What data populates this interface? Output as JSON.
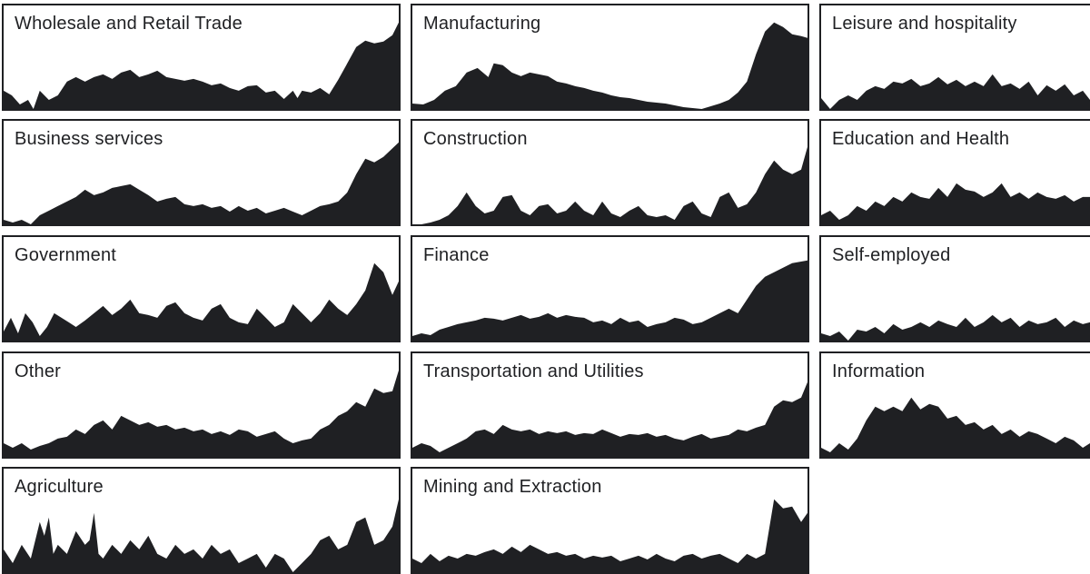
{
  "colors": {
    "fill": "#1f2023",
    "frame": "#1f2023",
    "background": "#ffffff"
  },
  "chart_data": [
    {
      "type": "area",
      "title": "Wholesale and Retail Trade",
      "x_index": [
        0,
        9,
        18,
        27,
        33,
        40,
        50,
        60,
        70,
        80,
        90,
        100,
        110,
        120,
        130,
        140,
        150,
        160,
        170,
        180,
        190,
        200,
        210,
        220,
        230,
        240,
        250,
        260,
        270,
        280,
        290,
        300,
        310,
        320,
        325,
        330,
        340,
        350,
        360,
        370,
        380,
        390,
        400,
        410,
        420,
        430,
        437
      ],
      "values": [
        0.2,
        0.15,
        0.05,
        0.1,
        0.0,
        0.2,
        0.1,
        0.15,
        0.3,
        0.35,
        0.3,
        0.35,
        0.38,
        0.33,
        0.4,
        0.43,
        0.35,
        0.38,
        0.42,
        0.35,
        0.33,
        0.31,
        0.33,
        0.3,
        0.26,
        0.28,
        0.23,
        0.2,
        0.25,
        0.26,
        0.18,
        0.2,
        0.11,
        0.2,
        0.12,
        0.2,
        0.18,
        0.23,
        0.16,
        0.32,
        0.5,
        0.68,
        0.75,
        0.72,
        0.74,
        0.81,
        0.95
      ]
    },
    {
      "type": "area",
      "title": "Manufacturing",
      "x_index": [
        0,
        12,
        24,
        36,
        48,
        60,
        72,
        84,
        90,
        100,
        110,
        120,
        130,
        140,
        150,
        160,
        170,
        180,
        190,
        200,
        210,
        220,
        230,
        240,
        250,
        260,
        270,
        280,
        290,
        300,
        310,
        320,
        330,
        340,
        350,
        360,
        370,
        380,
        390,
        400,
        410,
        420,
        430,
        437
      ],
      "values": [
        0.06,
        0.05,
        0.1,
        0.2,
        0.25,
        0.4,
        0.45,
        0.35,
        0.5,
        0.48,
        0.4,
        0.36,
        0.4,
        0.38,
        0.36,
        0.3,
        0.28,
        0.25,
        0.23,
        0.2,
        0.18,
        0.15,
        0.13,
        0.12,
        0.1,
        0.08,
        0.07,
        0.06,
        0.04,
        0.02,
        0.01,
        0.0,
        0.03,
        0.06,
        0.1,
        0.18,
        0.3,
        0.6,
        0.85,
        0.95,
        0.9,
        0.82,
        0.8,
        0.78
      ]
    },
    {
      "type": "area",
      "title": "Leisure and hospitality",
      "x_index": [
        0,
        10,
        20,
        30,
        40,
        50,
        60,
        70,
        80,
        90,
        100,
        110,
        120,
        130,
        140,
        150,
        160,
        170,
        180,
        190,
        200,
        210,
        220,
        230,
        240,
        250,
        260,
        270,
        280,
        290,
        298
      ],
      "values": [
        0.12,
        0.0,
        0.1,
        0.15,
        0.1,
        0.2,
        0.25,
        0.22,
        0.3,
        0.28,
        0.33,
        0.25,
        0.28,
        0.35,
        0.27,
        0.32,
        0.25,
        0.3,
        0.25,
        0.38,
        0.25,
        0.28,
        0.22,
        0.3,
        0.15,
        0.26,
        0.2,
        0.27,
        0.15,
        0.2,
        0.1
      ]
    },
    {
      "type": "area",
      "title": "Business services",
      "x_index": [
        0,
        10,
        20,
        30,
        40,
        50,
        60,
        70,
        80,
        90,
        100,
        110,
        120,
        130,
        140,
        150,
        160,
        170,
        180,
        190,
        200,
        210,
        220,
        230,
        240,
        250,
        260,
        270,
        280,
        290,
        300,
        310,
        320,
        330,
        340,
        350,
        360,
        370,
        380,
        390,
        400,
        410,
        420,
        437
      ],
      "values": [
        0.05,
        0.02,
        0.05,
        0.0,
        0.1,
        0.15,
        0.2,
        0.25,
        0.3,
        0.38,
        0.32,
        0.35,
        0.4,
        0.42,
        0.44,
        0.38,
        0.32,
        0.25,
        0.28,
        0.3,
        0.22,
        0.2,
        0.22,
        0.18,
        0.2,
        0.14,
        0.2,
        0.15,
        0.18,
        0.12,
        0.15,
        0.18,
        0.14,
        0.1,
        0.15,
        0.2,
        0.22,
        0.25,
        0.35,
        0.55,
        0.72,
        0.68,
        0.74,
        0.9
      ]
    },
    {
      "type": "area",
      "title": "Construction",
      "x_index": [
        0,
        10,
        20,
        30,
        40,
        50,
        60,
        70,
        80,
        90,
        100,
        110,
        120,
        130,
        140,
        150,
        160,
        170,
        180,
        190,
        200,
        210,
        220,
        230,
        240,
        250,
        260,
        270,
        280,
        290,
        300,
        310,
        320,
        330,
        340,
        350,
        360,
        370,
        380,
        390,
        400,
        410,
        420,
        430,
        437
      ],
      "values": [
        0.0,
        0.0,
        0.02,
        0.05,
        0.1,
        0.2,
        0.35,
        0.2,
        0.12,
        0.15,
        0.3,
        0.32,
        0.15,
        0.1,
        0.2,
        0.22,
        0.12,
        0.15,
        0.25,
        0.15,
        0.1,
        0.25,
        0.12,
        0.08,
        0.15,
        0.2,
        0.1,
        0.08,
        0.1,
        0.05,
        0.2,
        0.25,
        0.12,
        0.08,
        0.3,
        0.35,
        0.18,
        0.22,
        0.35,
        0.55,
        0.7,
        0.6,
        0.55,
        0.6,
        0.85
      ]
    },
    {
      "type": "area",
      "title": "Education and Health",
      "x_index": [
        0,
        10,
        20,
        30,
        40,
        50,
        60,
        70,
        80,
        90,
        100,
        110,
        120,
        130,
        140,
        150,
        160,
        170,
        180,
        190,
        200,
        210,
        220,
        230,
        240,
        250,
        260,
        270,
        280,
        290,
        298
      ],
      "values": [
        0.1,
        0.15,
        0.05,
        0.1,
        0.2,
        0.15,
        0.25,
        0.2,
        0.3,
        0.25,
        0.35,
        0.3,
        0.28,
        0.4,
        0.3,
        0.45,
        0.38,
        0.36,
        0.3,
        0.35,
        0.45,
        0.3,
        0.35,
        0.28,
        0.35,
        0.3,
        0.28,
        0.32,
        0.25,
        0.3,
        0.3
      ]
    },
    {
      "type": "area",
      "title": "Government",
      "x_index": [
        0,
        8,
        16,
        24,
        32,
        40,
        48,
        56,
        64,
        72,
        80,
        90,
        100,
        110,
        120,
        130,
        140,
        150,
        160,
        170,
        180,
        190,
        200,
        210,
        220,
        230,
        240,
        250,
        260,
        270,
        280,
        290,
        300,
        310,
        320,
        330,
        340,
        350,
        360,
        370,
        380,
        390,
        400,
        410,
        420,
        430,
        437
      ],
      "values": [
        0.1,
        0.25,
        0.08,
        0.3,
        0.2,
        0.05,
        0.15,
        0.3,
        0.25,
        0.2,
        0.15,
        0.22,
        0.3,
        0.38,
        0.28,
        0.35,
        0.45,
        0.3,
        0.28,
        0.25,
        0.38,
        0.42,
        0.3,
        0.25,
        0.22,
        0.35,
        0.4,
        0.25,
        0.2,
        0.18,
        0.35,
        0.25,
        0.15,
        0.2,
        0.4,
        0.3,
        0.2,
        0.3,
        0.45,
        0.35,
        0.28,
        0.4,
        0.55,
        0.85,
        0.75,
        0.5,
        0.65
      ]
    },
    {
      "type": "area",
      "title": "Finance",
      "x_index": [
        0,
        10,
        20,
        30,
        40,
        50,
        60,
        70,
        80,
        90,
        100,
        110,
        120,
        130,
        140,
        150,
        160,
        170,
        180,
        190,
        200,
        210,
        220,
        230,
        240,
        250,
        260,
        270,
        280,
        290,
        300,
        310,
        320,
        330,
        340,
        350,
        360,
        370,
        380,
        390,
        400,
        410,
        420,
        437
      ],
      "values": [
        0.05,
        0.08,
        0.06,
        0.12,
        0.15,
        0.18,
        0.2,
        0.22,
        0.25,
        0.24,
        0.22,
        0.25,
        0.28,
        0.24,
        0.26,
        0.3,
        0.25,
        0.28,
        0.26,
        0.25,
        0.2,
        0.22,
        0.18,
        0.25,
        0.2,
        0.22,
        0.15,
        0.18,
        0.2,
        0.25,
        0.23,
        0.18,
        0.2,
        0.25,
        0.3,
        0.35,
        0.3,
        0.45,
        0.6,
        0.7,
        0.75,
        0.8,
        0.85,
        0.88
      ]
    },
    {
      "type": "area",
      "title": "Self-employed",
      "x_index": [
        0,
        10,
        20,
        30,
        40,
        50,
        60,
        70,
        80,
        90,
        100,
        110,
        120,
        130,
        140,
        150,
        160,
        170,
        180,
        190,
        200,
        210,
        220,
        230,
        240,
        250,
        260,
        270,
        280,
        290,
        298
      ],
      "values": [
        0.08,
        0.05,
        0.1,
        0.0,
        0.12,
        0.1,
        0.15,
        0.08,
        0.18,
        0.12,
        0.15,
        0.2,
        0.15,
        0.22,
        0.18,
        0.15,
        0.25,
        0.15,
        0.2,
        0.28,
        0.2,
        0.25,
        0.15,
        0.22,
        0.18,
        0.2,
        0.25,
        0.15,
        0.22,
        0.18,
        0.2
      ]
    },
    {
      "type": "area",
      "title": "Other",
      "x_index": [
        0,
        10,
        20,
        30,
        40,
        50,
        60,
        70,
        80,
        90,
        100,
        110,
        120,
        130,
        140,
        150,
        160,
        170,
        180,
        190,
        200,
        210,
        220,
        230,
        240,
        250,
        260,
        270,
        280,
        290,
        300,
        310,
        320,
        330,
        340,
        350,
        360,
        370,
        380,
        390,
        400,
        410,
        420,
        430,
        437
      ],
      "values": [
        0.15,
        0.1,
        0.15,
        0.08,
        0.12,
        0.15,
        0.2,
        0.22,
        0.3,
        0.25,
        0.35,
        0.4,
        0.3,
        0.45,
        0.4,
        0.35,
        0.38,
        0.33,
        0.35,
        0.3,
        0.32,
        0.28,
        0.3,
        0.25,
        0.28,
        0.24,
        0.3,
        0.28,
        0.22,
        0.25,
        0.28,
        0.2,
        0.15,
        0.18,
        0.2,
        0.3,
        0.35,
        0.45,
        0.5,
        0.6,
        0.55,
        0.75,
        0.7,
        0.72,
        0.95
      ]
    },
    {
      "type": "area",
      "title": "Transportation and Utilities",
      "x_index": [
        0,
        10,
        20,
        30,
        40,
        50,
        60,
        70,
        80,
        90,
        100,
        110,
        120,
        130,
        140,
        150,
        160,
        170,
        180,
        190,
        200,
        210,
        220,
        230,
        240,
        250,
        260,
        270,
        280,
        290,
        300,
        310,
        320,
        330,
        340,
        350,
        360,
        370,
        380,
        390,
        400,
        410,
        420,
        430,
        437
      ],
      "values": [
        0.1,
        0.15,
        0.12,
        0.05,
        0.1,
        0.15,
        0.2,
        0.28,
        0.3,
        0.25,
        0.35,
        0.3,
        0.28,
        0.3,
        0.25,
        0.28,
        0.26,
        0.28,
        0.24,
        0.26,
        0.25,
        0.3,
        0.26,
        0.22,
        0.25,
        0.24,
        0.26,
        0.22,
        0.24,
        0.2,
        0.18,
        0.22,
        0.25,
        0.2,
        0.22,
        0.24,
        0.3,
        0.28,
        0.32,
        0.35,
        0.55,
        0.62,
        0.6,
        0.65,
        0.82
      ]
    },
    {
      "type": "area",
      "title": "Information",
      "x_index": [
        0,
        10,
        20,
        30,
        40,
        50,
        60,
        70,
        80,
        90,
        100,
        110,
        120,
        130,
        140,
        150,
        160,
        170,
        180,
        190,
        200,
        210,
        220,
        230,
        240,
        250,
        260,
        270,
        280,
        290,
        298
      ],
      "values": [
        0.1,
        0.05,
        0.15,
        0.08,
        0.2,
        0.4,
        0.55,
        0.5,
        0.55,
        0.5,
        0.65,
        0.52,
        0.58,
        0.55,
        0.42,
        0.45,
        0.35,
        0.38,
        0.3,
        0.35,
        0.25,
        0.3,
        0.22,
        0.28,
        0.25,
        0.2,
        0.15,
        0.22,
        0.18,
        0.1,
        0.15
      ]
    },
    {
      "type": "area",
      "title": "Agriculture",
      "x_index": [
        0,
        10,
        20,
        30,
        40,
        45,
        50,
        55,
        60,
        70,
        80,
        90,
        95,
        100,
        105,
        110,
        120,
        130,
        140,
        150,
        160,
        170,
        180,
        190,
        200,
        210,
        220,
        230,
        240,
        250,
        260,
        270,
        280,
        290,
        300,
        310,
        320,
        330,
        340,
        350,
        360,
        370,
        380,
        390,
        400,
        410,
        420,
        430,
        437
      ],
      "values": [
        0.25,
        0.1,
        0.3,
        0.15,
        0.55,
        0.4,
        0.6,
        0.2,
        0.3,
        0.2,
        0.45,
        0.3,
        0.35,
        0.65,
        0.2,
        0.15,
        0.3,
        0.2,
        0.35,
        0.25,
        0.4,
        0.2,
        0.15,
        0.3,
        0.2,
        0.25,
        0.15,
        0.3,
        0.2,
        0.25,
        0.1,
        0.15,
        0.2,
        0.05,
        0.2,
        0.15,
        0.0,
        0.1,
        0.2,
        0.35,
        0.4,
        0.25,
        0.3,
        0.55,
        0.6,
        0.3,
        0.35,
        0.5,
        0.8
      ]
    },
    {
      "type": "area",
      "title": "Mining and Extraction",
      "x_index": [
        0,
        10,
        20,
        30,
        40,
        50,
        60,
        70,
        80,
        90,
        100,
        110,
        120,
        130,
        140,
        150,
        160,
        170,
        180,
        190,
        200,
        210,
        220,
        230,
        240,
        250,
        260,
        270,
        280,
        290,
        300,
        310,
        320,
        330,
        340,
        350,
        360,
        370,
        380,
        390,
        400,
        410,
        420,
        430,
        437
      ],
      "values": [
        0.15,
        0.1,
        0.2,
        0.12,
        0.18,
        0.15,
        0.2,
        0.18,
        0.22,
        0.25,
        0.2,
        0.28,
        0.22,
        0.3,
        0.25,
        0.2,
        0.22,
        0.18,
        0.2,
        0.15,
        0.18,
        0.16,
        0.18,
        0.12,
        0.15,
        0.18,
        0.14,
        0.2,
        0.15,
        0.12,
        0.18,
        0.2,
        0.15,
        0.18,
        0.2,
        0.15,
        0.1,
        0.2,
        0.15,
        0.2,
        0.8,
        0.7,
        0.72,
        0.55,
        0.65
      ]
    }
  ]
}
